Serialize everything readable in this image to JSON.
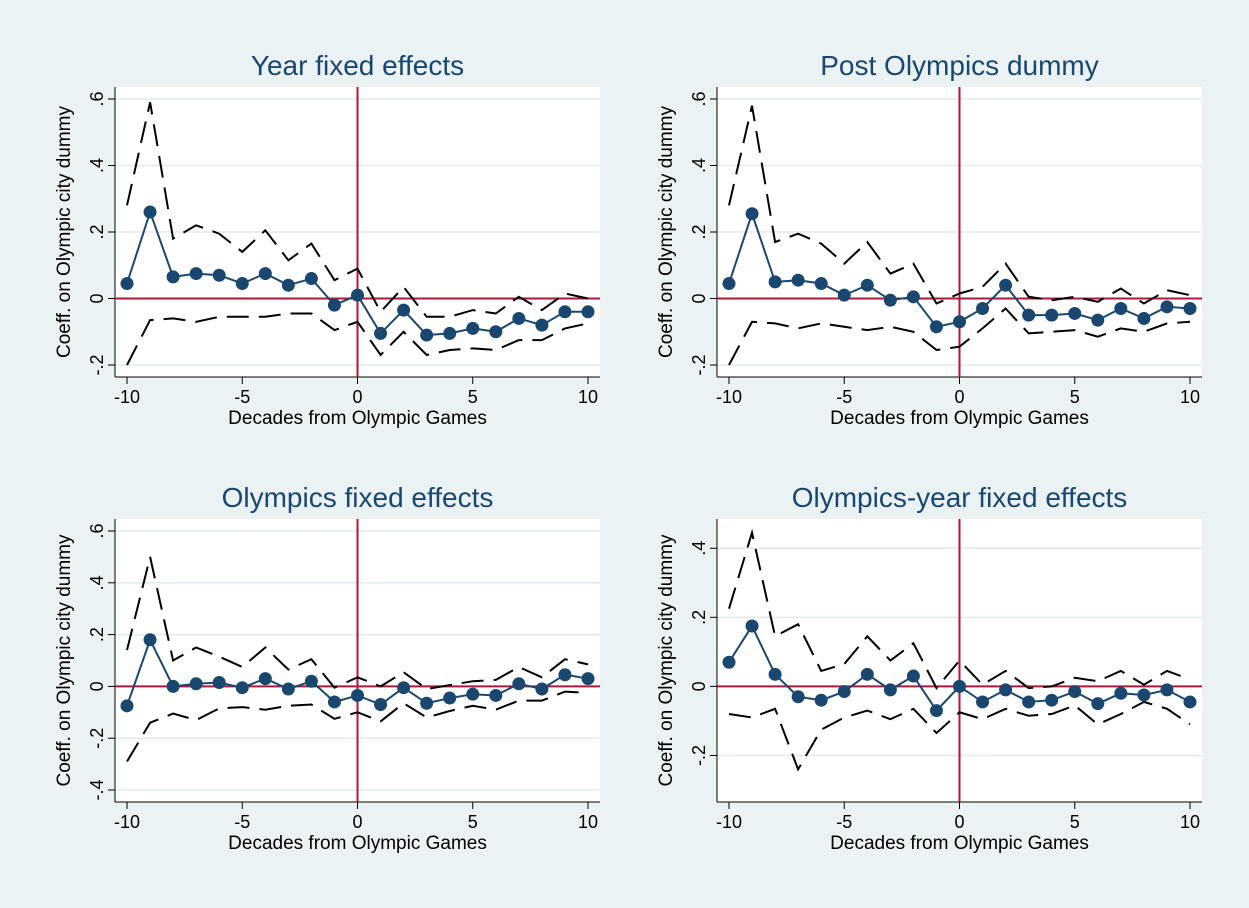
{
  "colors": {
    "background": "#eaf2f3",
    "plot_background": "#ffffff",
    "series": "#1a476f",
    "reference_line": "#b0163a",
    "ci_line": "#000000",
    "grid": "#e3eaec",
    "title": "#1a476f"
  },
  "chart_data": [
    {
      "type": "line",
      "title": "Year fixed effects",
      "xlabel": "Decades from Olympic Games",
      "ylabel": "Coeff. on Olympic city dummy",
      "xlim": [
        -10,
        10
      ],
      "ylim": [
        -0.2,
        0.6
      ],
      "xticks": [
        -10,
        -5,
        0,
        5,
        10
      ],
      "yticks": [
        -0.2,
        0,
        0.2,
        0.4,
        0.6
      ],
      "ytick_labels": [
        "-.2",
        "0",
        ".2",
        ".4",
        ".6"
      ],
      "reference_lines": {
        "x": 0,
        "y": 0
      },
      "grid": true,
      "x": [
        -10,
        -9,
        -8,
        -7,
        -6,
        -5,
        -4,
        -3,
        -2,
        -1,
        0,
        1,
        2,
        3,
        4,
        5,
        6,
        7,
        8,
        9,
        10
      ],
      "series": [
        {
          "role": "estimate",
          "values": [
            0.045,
            0.26,
            0.065,
            0.075,
            0.07,
            0.045,
            0.075,
            0.04,
            0.06,
            -0.02,
            0.01,
            -0.105,
            -0.035,
            -0.11,
            -0.105,
            -0.09,
            -0.1,
            -0.06,
            -0.08,
            -0.04,
            -0.04
          ]
        },
        {
          "role": "ci_upper",
          "values": [
            0.28,
            0.59,
            0.18,
            0.22,
            0.195,
            0.14,
            0.205,
            0.115,
            0.165,
            0.055,
            0.09,
            -0.04,
            0.035,
            -0.055,
            -0.055,
            -0.035,
            -0.045,
            0.005,
            -0.035,
            0.015,
            0.0
          ]
        },
        {
          "role": "ci_lower",
          "values": [
            -0.2,
            -0.065,
            -0.06,
            -0.07,
            -0.055,
            -0.055,
            -0.055,
            -0.045,
            -0.045,
            -0.095,
            -0.07,
            -0.17,
            -0.1,
            -0.17,
            -0.155,
            -0.15,
            -0.155,
            -0.125,
            -0.125,
            -0.09,
            -0.075
          ]
        }
      ]
    },
    {
      "type": "line",
      "title": "Post Olympics dummy",
      "xlabel": "Decades from Olympic Games",
      "ylabel": "Coeff. on Olympic city dummy",
      "xlim": [
        -10,
        10
      ],
      "ylim": [
        -0.2,
        0.6
      ],
      "xticks": [
        -10,
        -5,
        0,
        5,
        10
      ],
      "yticks": [
        -0.2,
        0,
        0.2,
        0.4,
        0.6
      ],
      "ytick_labels": [
        "-.2",
        "0",
        ".2",
        ".4",
        ".6"
      ],
      "reference_lines": {
        "x": 0,
        "y": 0
      },
      "grid": true,
      "x": [
        -10,
        -9,
        -8,
        -7,
        -6,
        -5,
        -4,
        -3,
        -2,
        -1,
        0,
        1,
        2,
        3,
        4,
        5,
        6,
        7,
        8,
        9,
        10
      ],
      "series": [
        {
          "role": "estimate",
          "values": [
            0.045,
            0.255,
            0.05,
            0.055,
            0.045,
            0.01,
            0.04,
            -0.005,
            0.005,
            -0.085,
            -0.07,
            -0.03,
            0.04,
            -0.05,
            -0.05,
            -0.045,
            -0.065,
            -0.03,
            -0.06,
            -0.025,
            -0.03
          ]
        },
        {
          "role": "ci_upper",
          "values": [
            0.28,
            0.58,
            0.17,
            0.195,
            0.165,
            0.105,
            0.17,
            0.075,
            0.105,
            -0.015,
            0.015,
            0.035,
            0.105,
            0.005,
            -0.005,
            0.005,
            -0.01,
            0.03,
            -0.015,
            0.025,
            0.01
          ]
        },
        {
          "role": "ci_lower",
          "values": [
            -0.2,
            -0.07,
            -0.075,
            -0.09,
            -0.075,
            -0.085,
            -0.095,
            -0.085,
            -0.1,
            -0.155,
            -0.145,
            -0.09,
            -0.03,
            -0.105,
            -0.1,
            -0.095,
            -0.115,
            -0.09,
            -0.1,
            -0.075,
            -0.07
          ]
        }
      ]
    },
    {
      "type": "line",
      "title": "Olympics fixed effects",
      "xlabel": "Decades from Olympic Games",
      "ylabel": "Coeff. on Olympic city dummy",
      "xlim": [
        -10,
        10
      ],
      "ylim": [
        -0.4,
        0.6
      ],
      "xticks": [
        -10,
        -5,
        0,
        5,
        10
      ],
      "yticks": [
        -0.4,
        -0.2,
        0,
        0.2,
        0.4,
        0.6
      ],
      "ytick_labels": [
        "-.4",
        "-.2",
        "0",
        ".2",
        ".4",
        ".6"
      ],
      "reference_lines": {
        "x": 0,
        "y": 0
      },
      "grid": true,
      "x": [
        -10,
        -9,
        -8,
        -7,
        -6,
        -5,
        -4,
        -3,
        -2,
        -1,
        0,
        1,
        2,
        3,
        4,
        5,
        6,
        7,
        8,
        9,
        10
      ],
      "series": [
        {
          "role": "estimate",
          "values": [
            -0.075,
            0.18,
            0.0,
            0.01,
            0.015,
            -0.005,
            0.03,
            -0.01,
            0.02,
            -0.06,
            -0.035,
            -0.07,
            -0.005,
            -0.065,
            -0.045,
            -0.03,
            -0.035,
            0.01,
            -0.01,
            0.045,
            0.03
          ]
        },
        {
          "role": "ci_upper",
          "values": [
            0.14,
            0.5,
            0.1,
            0.15,
            0.115,
            0.075,
            0.15,
            0.065,
            0.105,
            -0.005,
            0.035,
            0.0,
            0.055,
            -0.01,
            0.005,
            0.02,
            0.025,
            0.075,
            0.035,
            0.105,
            0.085
          ]
        },
        {
          "role": "ci_lower",
          "values": [
            -0.29,
            -0.14,
            -0.105,
            -0.13,
            -0.085,
            -0.08,
            -0.09,
            -0.075,
            -0.07,
            -0.125,
            -0.1,
            -0.135,
            -0.065,
            -0.12,
            -0.095,
            -0.075,
            -0.09,
            -0.055,
            -0.055,
            -0.02,
            -0.025
          ]
        }
      ]
    },
    {
      "type": "line",
      "title": "Olympics-year fixed effects",
      "xlabel": "Decades from Olympic Games",
      "ylabel": "Coeff. on Olympic city dummy",
      "xlim": [
        -10,
        10
      ],
      "ylim": [
        -0.3,
        0.45
      ],
      "xticks": [
        -10,
        -5,
        0,
        5,
        10
      ],
      "yticks": [
        -0.2,
        0,
        0.2,
        0.4
      ],
      "ytick_labels": [
        "-.2",
        "0",
        ".2",
        ".4"
      ],
      "reference_lines": {
        "x": 0,
        "y": 0
      },
      "grid": true,
      "x": [
        -10,
        -9,
        -8,
        -7,
        -6,
        -5,
        -4,
        -3,
        -2,
        -1,
        0,
        1,
        2,
        3,
        4,
        5,
        6,
        7,
        8,
        9,
        10
      ],
      "series": [
        {
          "role": "estimate",
          "values": [
            0.07,
            0.175,
            0.035,
            -0.03,
            -0.04,
            -0.015,
            0.035,
            -0.01,
            0.03,
            -0.07,
            0.0,
            -0.045,
            -0.01,
            -0.045,
            -0.04,
            -0.015,
            -0.05,
            -0.02,
            -0.025,
            -0.01,
            -0.045
          ]
        },
        {
          "role": "ci_upper",
          "values": [
            0.225,
            0.445,
            0.145,
            0.18,
            0.045,
            0.065,
            0.145,
            0.075,
            0.125,
            -0.005,
            0.075,
            0.005,
            0.045,
            -0.005,
            0.0,
            0.025,
            0.015,
            0.045,
            0.005,
            0.045,
            0.02
          ]
        },
        {
          "role": "ci_lower",
          "values": [
            -0.08,
            -0.09,
            -0.065,
            -0.24,
            -0.125,
            -0.09,
            -0.07,
            -0.095,
            -0.065,
            -0.135,
            -0.075,
            -0.095,
            -0.065,
            -0.085,
            -0.08,
            -0.055,
            -0.11,
            -0.08,
            -0.045,
            -0.065,
            -0.11
          ]
        }
      ]
    }
  ]
}
